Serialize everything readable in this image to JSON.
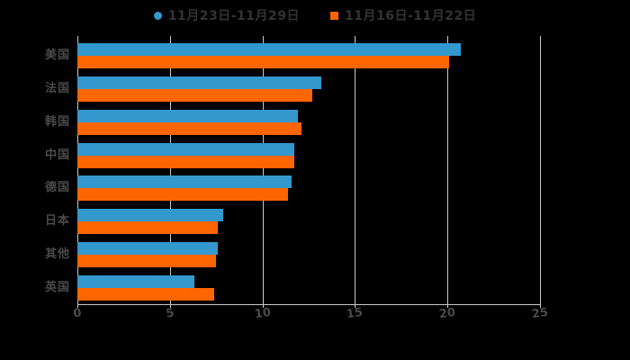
{
  "legend": {
    "items": [
      {
        "label": "11月23日-11月29日",
        "marker": "circle",
        "color": "#3398cd"
      },
      {
        "label": "11月16日-11月22日",
        "marker": "square",
        "color": "#fd6500"
      }
    ]
  },
  "chart_data": {
    "type": "bar",
    "orientation": "horizontal",
    "title": "",
    "xlabel": "",
    "ylabel": "",
    "categories": [
      "美国",
      "法国",
      "韩国",
      "中国",
      "德国",
      "日本",
      "其他",
      "英国"
    ],
    "series": [
      {
        "name": "11月23日-11月29日",
        "color": "#3398cd",
        "values": [
          20.7,
          13.2,
          11.9,
          11.7,
          11.6,
          7.9,
          7.6,
          6.3
        ]
      },
      {
        "name": "11月16日-11月22日",
        "color": "#fd6500",
        "values": [
          20.1,
          12.7,
          12.1,
          11.7,
          11.4,
          7.6,
          7.5,
          7.4
        ]
      }
    ],
    "xlim": [
      0,
      25
    ],
    "xticks": [
      "0",
      "5",
      "10",
      "15",
      "20",
      "25"
    ],
    "grid": true,
    "legend_position": "top",
    "colors": {
      "background": "#000000",
      "grid": "#c9c9c9",
      "axis_text": "#4a4a4a",
      "legend_text": "#333333"
    }
  }
}
